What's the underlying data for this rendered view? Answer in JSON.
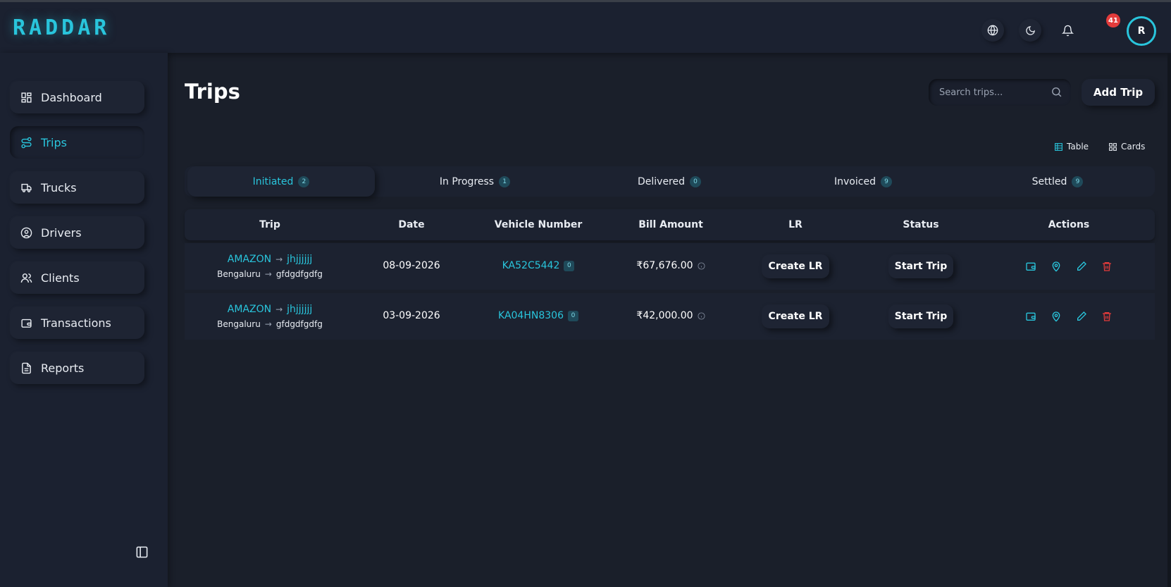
{
  "app": {
    "logo": "RADDAR"
  },
  "header": {
    "notifications_count": "41",
    "avatar_initial": "R"
  },
  "colors": {
    "accent": "#29c5dc",
    "danger": "#e23b3b",
    "background": "#1a1f2a",
    "surface": "#1e2433"
  },
  "sidebar": {
    "items": [
      {
        "label": "Dashboard",
        "icon": "dashboard-icon"
      },
      {
        "label": "Trips",
        "icon": "trips-icon",
        "active": true
      },
      {
        "label": "Trucks",
        "icon": "truck-icon"
      },
      {
        "label": "Drivers",
        "icon": "driver-icon"
      },
      {
        "label": "Clients",
        "icon": "clients-icon"
      },
      {
        "label": "Transactions",
        "icon": "wallet-icon"
      },
      {
        "label": "Reports",
        "icon": "report-icon"
      }
    ]
  },
  "page": {
    "title": "Trips",
    "search_placeholder": "Search trips...",
    "add_trip_label": "Add Trip",
    "view_table_label": "Table",
    "view_cards_label": "Cards"
  },
  "tabs": [
    {
      "label": "Initiated",
      "count": "2",
      "active": true
    },
    {
      "label": "In Progress",
      "count": "1"
    },
    {
      "label": "Delivered",
      "count": "0"
    },
    {
      "label": "Invoiced",
      "count": "9"
    },
    {
      "label": "Settled",
      "count": "9"
    }
  ],
  "table": {
    "columns": [
      "Trip",
      "Date",
      "Vehicle Number",
      "Bill Amount",
      "LR",
      "Status",
      "Actions"
    ],
    "rows": [
      {
        "client": "AMAZON",
        "consignee": "jhjjjjjj",
        "origin": "Bengaluru",
        "destination": "gfdgdfgdfg",
        "date": "08-09-2026",
        "vehicle": "KA52C5442",
        "vehicle_count": "0",
        "bill_amount": "₹67,676.00",
        "lr_action": "Create LR",
        "status_action": "Start Trip"
      },
      {
        "client": "AMAZON",
        "consignee": "jhjjjjjj",
        "origin": "Bengaluru",
        "destination": "gfdgdfgdfg",
        "date": "03-09-2026",
        "vehicle": "KA04HN8306",
        "vehicle_count": "0",
        "bill_amount": "₹42,000.00",
        "lr_action": "Create LR",
        "status_action": "Start Trip"
      }
    ],
    "action_icons": [
      "wallet-icon",
      "location-pin-icon",
      "edit-pencil-icon",
      "delete-trash-icon"
    ]
  }
}
